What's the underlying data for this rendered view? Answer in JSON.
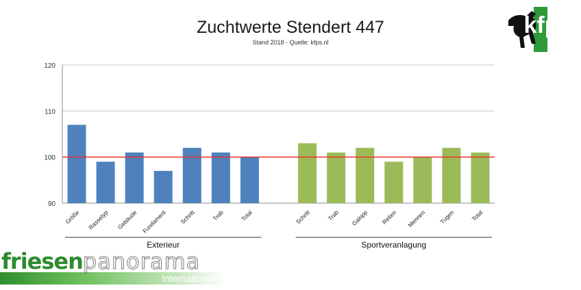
{
  "chart_data": {
    "type": "bar",
    "title": "Zuchtwerte Stendert 447",
    "subtitle": "Stand 2018 - Quelle: kfps.nl",
    "ylim": [
      90,
      120
    ],
    "yticks": [
      90,
      100,
      110,
      120
    ],
    "reference_line": 100,
    "grid": true,
    "groups": [
      {
        "name": "Exterieur",
        "color": "#4f81bd",
        "categories": [
          "Größe",
          "Rassetyp",
          "Gebäude",
          "Fundament",
          "Schritt",
          "Trab",
          "Total"
        ],
        "values": [
          107,
          99,
          101,
          97,
          102,
          101,
          100
        ]
      },
      {
        "name": "Sportveranlagung",
        "color": "#9bbb59",
        "categories": [
          "Schritt",
          "Trab",
          "Galopp",
          "Reiten",
          "Mennen",
          "Tugen",
          "Total"
        ],
        "values": [
          103,
          101,
          102,
          99,
          100,
          102,
          101
        ]
      }
    ],
    "colors": {
      "reference_line": "#e8322b",
      "grid": "#c8c8c8",
      "axis": "#888888"
    }
  },
  "logo": {
    "text": "kfp",
    "icon": "horse-icon"
  },
  "brand": {
    "word1": "friesen",
    "word2": "panorama",
    "word3": "International"
  }
}
